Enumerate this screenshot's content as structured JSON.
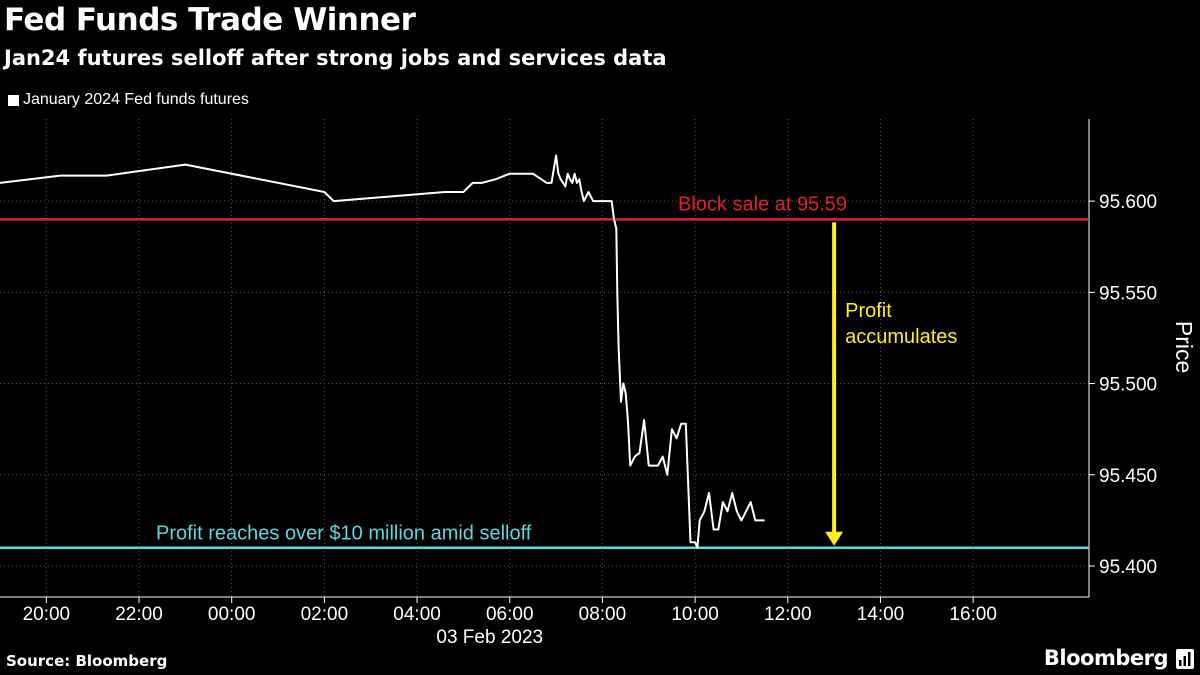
{
  "title": "Fed Funds Trade Winner",
  "subtitle": "Jan24 futures selloff after strong jobs and services data",
  "source": "Source: Bloomberg",
  "brand": "Bloomberg",
  "colors": {
    "background": "#000000",
    "line": "#ffffff",
    "grid": "#555555",
    "block_sale": "#e3202d",
    "profit_reached": "#5ad9df",
    "profit_arrow": "#ffee22"
  },
  "chart_data": {
    "type": "line",
    "legend_position": "top-left",
    "grid": true,
    "ylabel": "Price",
    "y_axis_side": "right",
    "ylim": [
      95.383,
      95.645
    ],
    "y_ticks": [
      95.4,
      95.45,
      95.5,
      95.55,
      95.6
    ],
    "y_tick_labels": [
      "95.400",
      "95.450",
      "95.500",
      "95.550",
      "95.600"
    ],
    "xlim": [
      -5.0,
      18.5
    ],
    "x_ticks": [
      -4,
      -2,
      0,
      2,
      4,
      6,
      8,
      10,
      12,
      14,
      16
    ],
    "x_tick_labels": [
      "20:00",
      "22:00",
      "00:00",
      "02:00",
      "04:00",
      "06:00",
      "08:00",
      "10:00",
      "12:00",
      "14:00",
      "16:00"
    ],
    "x_sublabel": "03 Feb 2023",
    "series": [
      {
        "name": "January 2024 Fed funds futures",
        "x": [
          -5.0,
          -3.7,
          -2.7,
          -1.0,
          2.0,
          2.2,
          4.6,
          5.0,
          5.2,
          5.4,
          5.7,
          6.0,
          6.5,
          6.8,
          6.9,
          7.0,
          7.05,
          7.1,
          7.2,
          7.25,
          7.3,
          7.35,
          7.4,
          7.45,
          7.5,
          7.55,
          7.6,
          7.7,
          7.8,
          8.0,
          8.2,
          8.25,
          8.3,
          8.32,
          8.35,
          8.4,
          8.45,
          8.5,
          8.55,
          8.6,
          8.7,
          8.8,
          8.9,
          9.0,
          9.1,
          9.2,
          9.3,
          9.4,
          9.5,
          9.6,
          9.7,
          9.8,
          9.9,
          10.0,
          10.05,
          10.1,
          10.2,
          10.3,
          10.4,
          10.5,
          10.6,
          10.7,
          10.8,
          10.9,
          11.0,
          11.1,
          11.2,
          11.3,
          11.5
        ],
        "values": [
          95.61,
          95.614,
          95.614,
          95.62,
          95.605,
          95.6,
          95.605,
          95.605,
          95.61,
          95.61,
          95.612,
          95.615,
          95.615,
          95.61,
          95.61,
          95.625,
          95.615,
          95.612,
          95.608,
          95.615,
          95.612,
          95.61,
          95.615,
          95.61,
          95.612,
          95.605,
          95.6,
          95.605,
          95.6,
          95.6,
          95.6,
          95.59,
          95.585,
          95.55,
          95.52,
          95.49,
          95.5,
          95.495,
          95.48,
          95.455,
          95.46,
          95.462,
          95.48,
          95.455,
          95.455,
          95.455,
          95.46,
          95.45,
          95.475,
          95.47,
          95.478,
          95.478,
          95.413,
          95.413,
          95.41,
          95.425,
          95.43,
          95.44,
          95.42,
          95.42,
          95.435,
          95.43,
          95.44,
          95.43,
          95.425,
          95.43,
          95.435,
          95.425,
          95.425
        ]
      }
    ],
    "annotations": [
      {
        "type": "hline",
        "y": 95.59,
        "color": "#e3202d",
        "text": "Block sale at 95.59"
      },
      {
        "type": "hline",
        "y": 95.41,
        "color": "#5ad9df",
        "text": "Profit reaches over $10 million amid selloff"
      },
      {
        "type": "arrow",
        "x": 13.0,
        "y_from": 95.59,
        "y_to": 95.41,
        "color": "#ffee22",
        "text_lines": [
          "Profit",
          "accumulates"
        ]
      }
    ]
  }
}
